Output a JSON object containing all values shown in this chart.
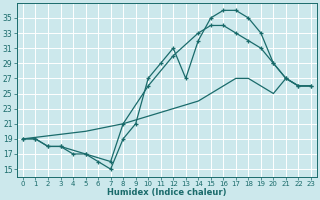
{
  "xlabel": "Humidex (Indice chaleur)",
  "bg_color": "#cce8ec",
  "line_color": "#1a6b6b",
  "grid_color": "#ffffff",
  "xlim": [
    -0.5,
    23.5
  ],
  "ylim": [
    14,
    37
  ],
  "xticks": [
    0,
    1,
    2,
    3,
    4,
    5,
    6,
    7,
    8,
    9,
    10,
    11,
    12,
    13,
    14,
    15,
    16,
    17,
    18,
    19,
    20,
    21,
    22,
    23
  ],
  "yticks": [
    15,
    17,
    19,
    21,
    23,
    25,
    27,
    29,
    31,
    33,
    35
  ],
  "line1_x": [
    0,
    1,
    2,
    3,
    4,
    5,
    6,
    7,
    8,
    9,
    10,
    11,
    12,
    13,
    14,
    15,
    16,
    17,
    18,
    19,
    20,
    21,
    22,
    23
  ],
  "line1_y": [
    19,
    19,
    18,
    18,
    17,
    17,
    16,
    15,
    19,
    21,
    27,
    29,
    31,
    27,
    32,
    35,
    36,
    36,
    35,
    33,
    29,
    27,
    26,
    26
  ],
  "line2_x": [
    0,
    1,
    2,
    3,
    5,
    7,
    8,
    10,
    12,
    14,
    15,
    16,
    17,
    18,
    19,
    20,
    21,
    22,
    23
  ],
  "line2_y": [
    19,
    19,
    18,
    18,
    17,
    16,
    21,
    26,
    30,
    33,
    34,
    34,
    33,
    32,
    31,
    29,
    27,
    26,
    26
  ],
  "line3_x": [
    0,
    5,
    8,
    10,
    12,
    14,
    15,
    16,
    17,
    18,
    19,
    20,
    21,
    22,
    23
  ],
  "line3_y": [
    19,
    20,
    21,
    22,
    23,
    24,
    25,
    26,
    27,
    27,
    26,
    25,
    27,
    26,
    26
  ]
}
